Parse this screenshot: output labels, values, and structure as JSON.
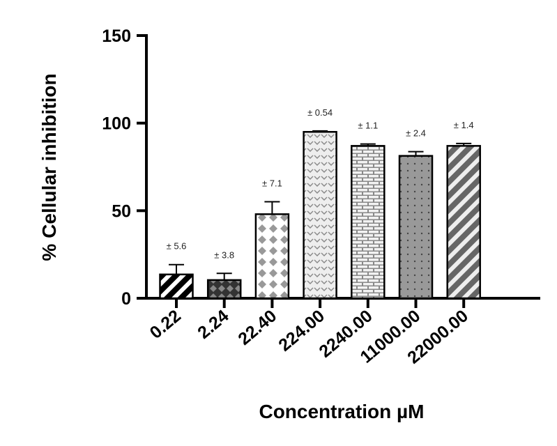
{
  "chart_data": {
    "type": "bar",
    "xlabel": "Concentration µM",
    "ylabel": "% Cellular inhibition",
    "ylim": [
      0,
      150
    ],
    "yticks": [
      "0",
      "50",
      "100",
      "150"
    ],
    "categories": [
      "0.22",
      "2.24",
      "22.40",
      "224.00",
      "2240.00",
      "11000.00",
      "22000.00"
    ],
    "values": [
      13.6,
      10.4,
      48,
      95,
      87,
      81.3,
      87
    ],
    "errors": [
      5.6,
      3.8,
      7.1,
      0.54,
      1.1,
      2.4,
      1.4
    ],
    "error_labels": [
      "± 5.6",
      "± 3.8",
      "± 7.1",
      "± 0.54",
      "± 1.1",
      "± 2.4",
      "± 1.4"
    ],
    "patterns": [
      "diagonal-black",
      "crosshatch-dark",
      "diamond-white",
      "chevron-light",
      "brick-light",
      "dots-gray",
      "diagonal-gray"
    ],
    "grid": false
  }
}
